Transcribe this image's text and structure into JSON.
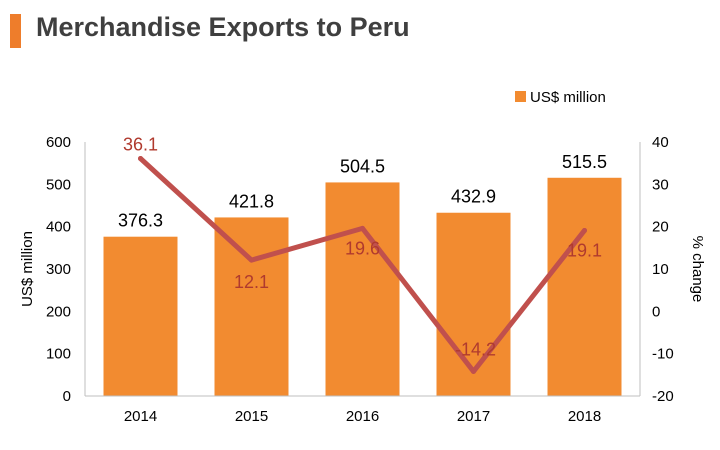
{
  "title": "Merchandise Exports to Peru",
  "colors": {
    "accent": "#ee7d2b",
    "bar": "#f28b30",
    "line": "#c0504d",
    "line_label": "#b03a2e",
    "axis": "#bfbfbf",
    "title_text": "#3f3f3f"
  },
  "chart_data": {
    "type": "bar",
    "categories": [
      "2014",
      "2015",
      "2016",
      "2017",
      "2018"
    ],
    "series": [
      {
        "name": "US$ million",
        "type": "bar",
        "axis": "left",
        "values": [
          376.3,
          421.8,
          504.5,
          432.9,
          515.5
        ],
        "labels": [
          "376.3",
          "421.8",
          "504.5",
          "432.9",
          "515.5"
        ]
      },
      {
        "type": "line",
        "axis": "right",
        "values": [
          36.1,
          12.1,
          19.6,
          -14.2,
          19.1
        ],
        "labels": [
          "36.1",
          "12.1",
          "19.6",
          "-14.2",
          "19.1"
        ]
      }
    ],
    "ylabel": "US$ million",
    "ylim": [
      0,
      600
    ],
    "yticks": [
      "0",
      "100",
      "200",
      "300",
      "400",
      "500",
      "600"
    ],
    "y2label": "% change",
    "y2lim": [
      -20,
      40
    ],
    "y2ticks": [
      "-20",
      "-10",
      "0",
      "10",
      "20",
      "30",
      "40"
    ],
    "legend": {
      "position": "top-right",
      "label": "US$ million"
    },
    "grid": false
  }
}
